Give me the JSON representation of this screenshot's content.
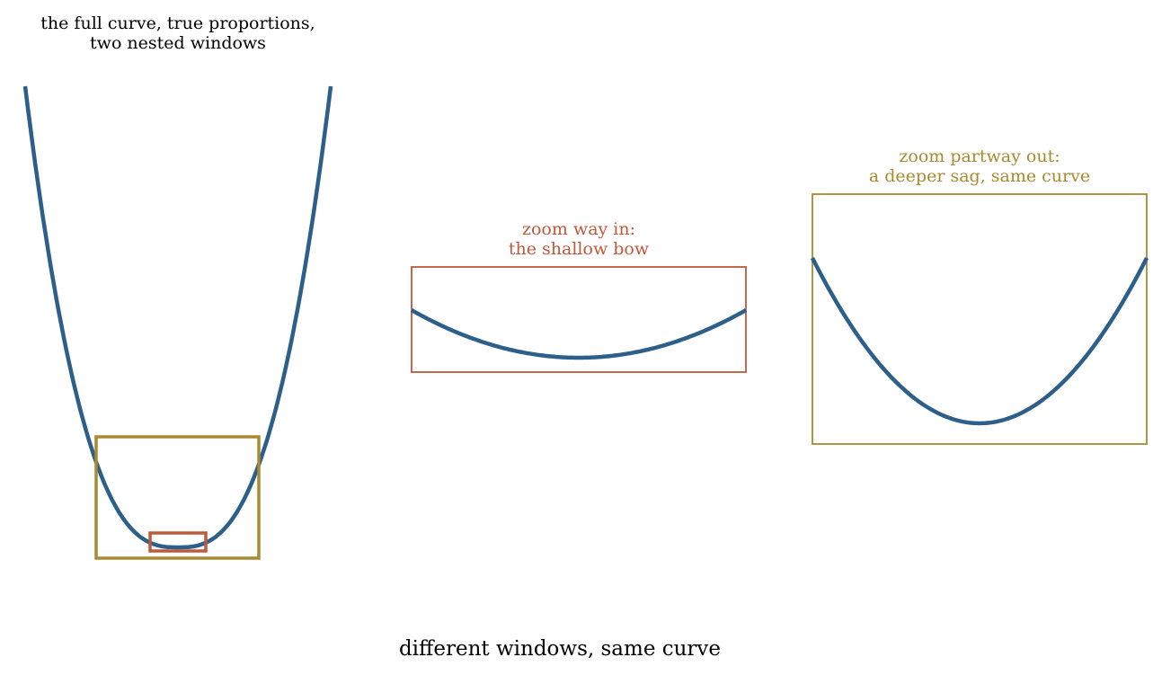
{
  "panels": [
    {
      "title": [
        "the full curve, true proportions,",
        "two nested windows"
      ]
    },
    {
      "title": [
        "zoom way in:",
        "the shallow bow"
      ]
    },
    {
      "title": [
        "zoom partway out:",
        "a deeper sag, same curve"
      ]
    }
  ],
  "footer": "different windows, same curve"
}
